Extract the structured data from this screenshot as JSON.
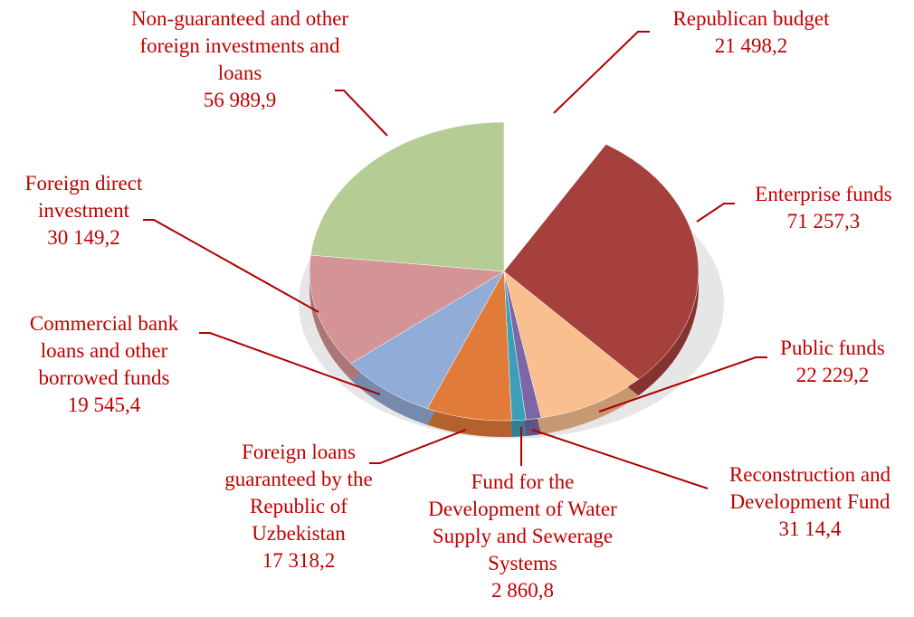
{
  "chart_data": {
    "type": "pie",
    "categories": [
      "Republican budget",
      "Enterprise funds",
      "Public funds",
      "Reconstruction and Development Fund",
      "Fund for the Development of Water Supply and Sewerage Systems",
      "Foreign loans guaranteed by the Republic of Uzbekistan",
      "Commercial bank loans and other borrowed funds",
      "Foreign direct investment",
      "Non-guaranteed and other foreign investments and loans"
    ],
    "values": [
      21498.2,
      71257.3,
      22229.2,
      3114.4,
      2860.8,
      17318.2,
      19545.4,
      30149.2,
      56989.9
    ],
    "value_labels": [
      "21 498,2",
      "71 257,3",
      "22 229,2",
      "31 14,4",
      "2 860,8",
      "17 318,2",
      "19 545,4",
      "30 149,2",
      "56 989,9"
    ],
    "colors": [
      "#ffffff",
      "#a5403d",
      "#f9bf8f",
      "#7b66a6",
      "#3d9fb7",
      "#e07b39",
      "#92acd8",
      "#d49496",
      "#b5cd94"
    ]
  }
}
